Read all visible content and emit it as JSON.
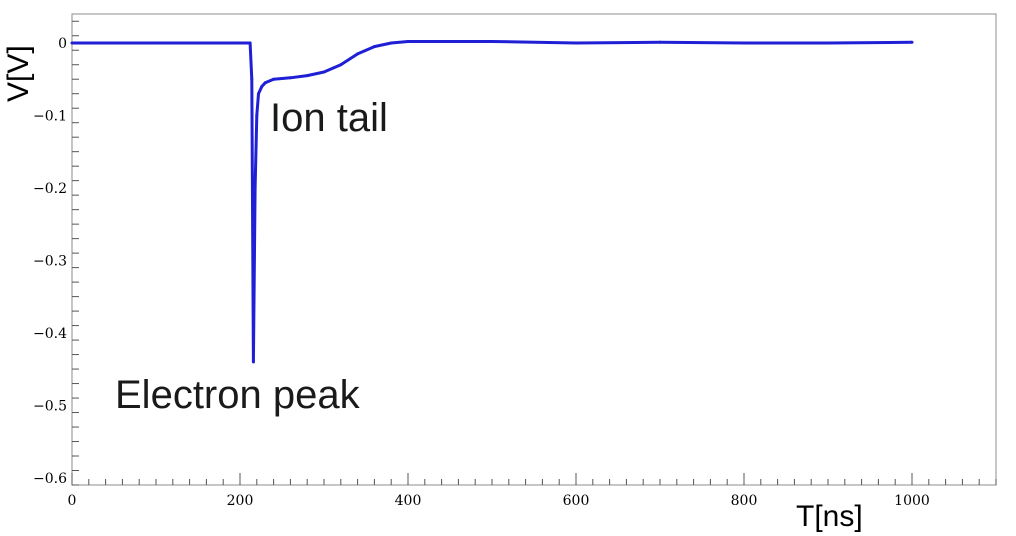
{
  "chart_data": {
    "type": "line",
    "title": "",
    "xlabel": "T[ns]",
    "ylabel": "V[V]",
    "xlim": [
      0,
      1100
    ],
    "ylim": [
      -0.61,
      0.04
    ],
    "x_ticks": [
      0,
      200,
      400,
      600,
      800,
      1000
    ],
    "y_ticks": [
      0,
      -0.1,
      -0.2,
      -0.3,
      -0.4,
      -0.5,
      -0.6
    ],
    "x_tick_labels": [
      "0",
      "200",
      "400",
      "600",
      "800",
      "1000"
    ],
    "y_tick_labels": [
      "0",
      "−0.1",
      "−0.2",
      "−0.3",
      "−0.4",
      "−0.5",
      "−0.6"
    ],
    "grid": false,
    "series": [
      {
        "color": "#1f1fd6",
        "x": [
          0,
          100,
          200,
          212,
          214,
          216,
          218,
          220,
          222,
          226,
          230,
          240,
          260,
          280,
          300,
          320,
          340,
          360,
          380,
          400,
          500,
          600,
          700,
          800,
          900,
          1000
        ],
        "y": [
          0.0,
          0.0,
          0.0,
          0.0,
          -0.05,
          -0.44,
          -0.2,
          -0.1,
          -0.07,
          -0.06,
          -0.055,
          -0.05,
          -0.048,
          -0.045,
          -0.04,
          -0.03,
          -0.015,
          -0.005,
          0.0,
          0.002,
          0.002,
          0.0,
          0.001,
          0.0,
          0.0,
          0.001
        ]
      }
    ],
    "annotations": [
      {
        "text": "Ion tail"
      },
      {
        "text": "Electron peak"
      }
    ]
  }
}
